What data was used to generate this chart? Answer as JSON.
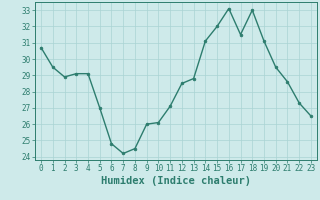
{
  "x": [
    0,
    1,
    2,
    3,
    4,
    5,
    6,
    7,
    8,
    9,
    10,
    11,
    12,
    13,
    14,
    15,
    16,
    17,
    18,
    19,
    20,
    21,
    22,
    23
  ],
  "y": [
    30.7,
    29.5,
    28.9,
    29.1,
    29.1,
    27.0,
    24.8,
    24.2,
    24.5,
    26.0,
    26.1,
    27.1,
    28.5,
    28.8,
    31.1,
    32.0,
    33.1,
    31.5,
    33.0,
    31.1,
    29.5,
    28.6,
    27.3,
    26.5
  ],
  "line_color": "#2d7d6e",
  "marker": "o",
  "markersize": 2.0,
  "linewidth": 1.0,
  "bg_color": "#ceeaea",
  "grid_color": "#aad4d4",
  "xlabel": "Humidex (Indice chaleur)",
  "ylim": [
    23.8,
    33.5
  ],
  "yticks": [
    24,
    25,
    26,
    27,
    28,
    29,
    30,
    31,
    32,
    33
  ],
  "xticks": [
    0,
    1,
    2,
    3,
    4,
    5,
    6,
    7,
    8,
    9,
    10,
    11,
    12,
    13,
    14,
    15,
    16,
    17,
    18,
    19,
    20,
    21,
    22,
    23
  ],
  "xlim": [
    -0.5,
    23.5
  ],
  "tick_color": "#2d7d6e",
  "label_fontsize": 7.0,
  "tick_fontsize": 5.5,
  "xlabel_fontsize": 7.5
}
